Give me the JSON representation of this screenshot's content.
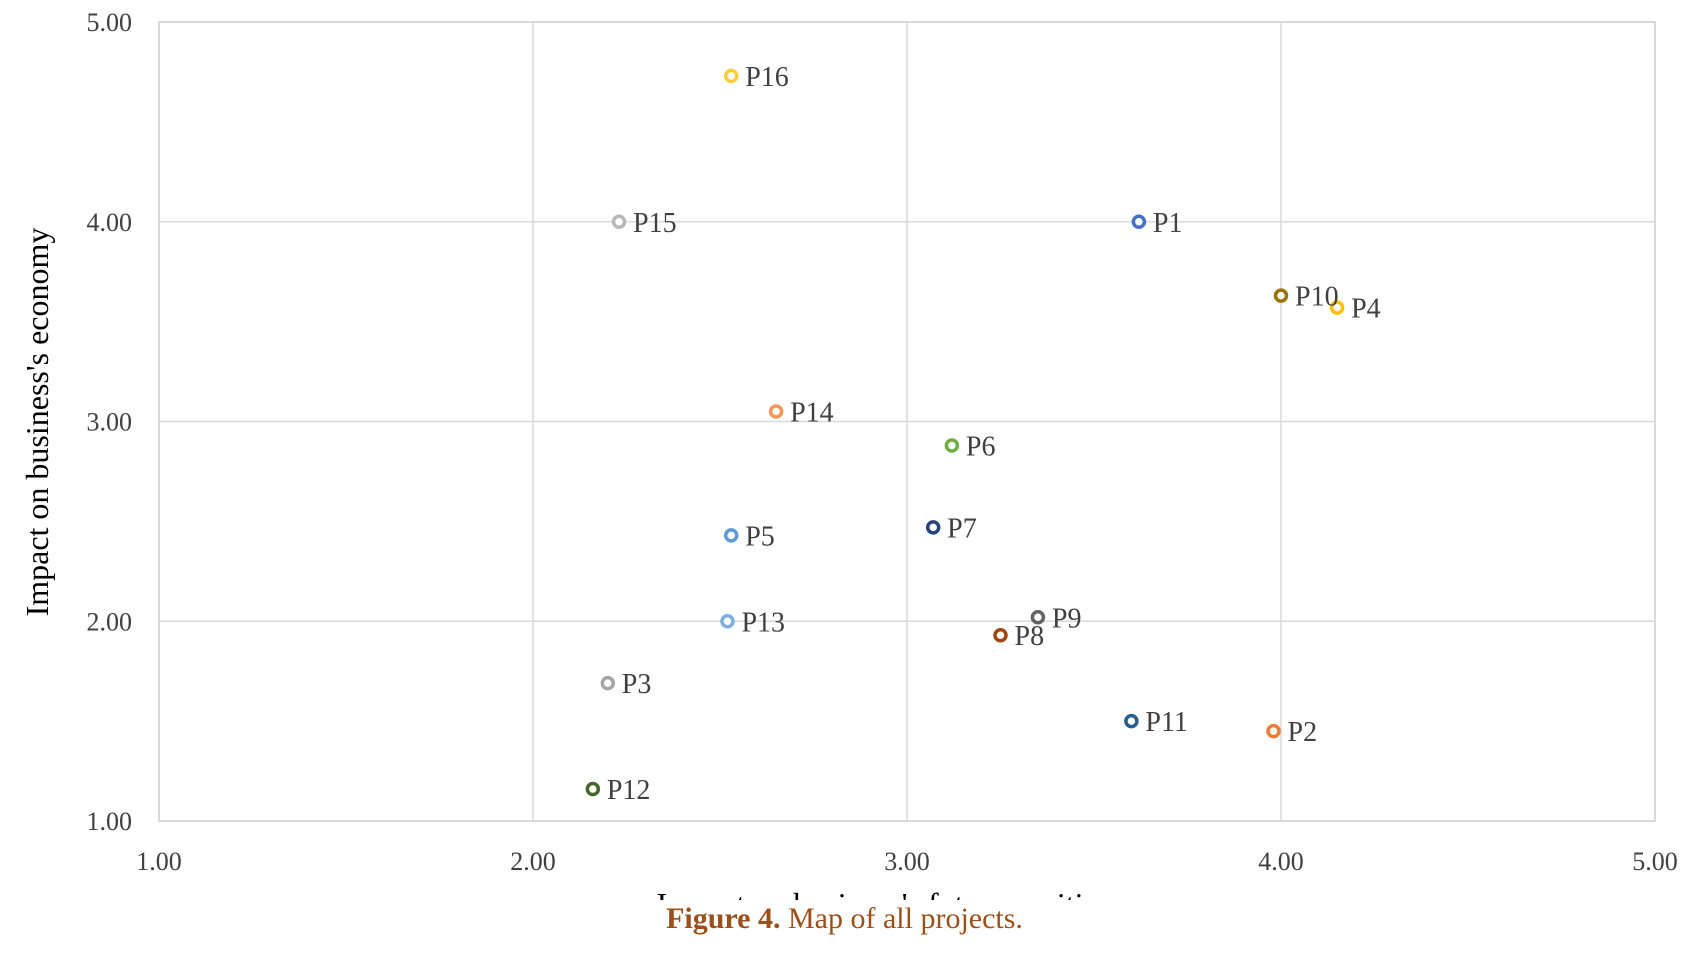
{
  "chart_data": {
    "type": "scatter",
    "xlabel": "Impact on business's future position",
    "ylabel": "Impact on business's economy",
    "xlim": [
      1.0,
      5.0
    ],
    "ylim": [
      1.0,
      5.0
    ],
    "x_ticks": [
      "1.00",
      "2.00",
      "3.00",
      "4.00",
      "5.00"
    ],
    "y_ticks": [
      "1.00",
      "2.00",
      "3.00",
      "4.00",
      "5.00"
    ],
    "grid": true,
    "points": [
      {
        "label": "P1",
        "x": 3.62,
        "y": 4.0,
        "color": "#4472c4"
      },
      {
        "label": "P2",
        "x": 3.98,
        "y": 1.45,
        "color": "#ed7d31"
      },
      {
        "label": "P3",
        "x": 2.2,
        "y": 1.69,
        "color": "#a5a5a5"
      },
      {
        "label": "P4",
        "x": 4.15,
        "y": 3.57,
        "color": "#ffc000"
      },
      {
        "label": "P5",
        "x": 2.53,
        "y": 2.43,
        "color": "#5b9bd5"
      },
      {
        "label": "P6",
        "x": 3.12,
        "y": 2.88,
        "color": "#70ad47"
      },
      {
        "label": "P7",
        "x": 3.07,
        "y": 2.47,
        "color": "#264478"
      },
      {
        "label": "P8",
        "x": 3.25,
        "y": 1.93,
        "color": "#9e480e"
      },
      {
        "label": "P9",
        "x": 3.35,
        "y": 2.02,
        "color": "#636363"
      },
      {
        "label": "P10",
        "x": 4.0,
        "y": 3.63,
        "color": "#997300"
      },
      {
        "label": "P11",
        "x": 3.6,
        "y": 1.5,
        "color": "#255e91"
      },
      {
        "label": "P12",
        "x": 2.16,
        "y": 1.16,
        "color": "#43682b"
      },
      {
        "label": "P13",
        "x": 2.52,
        "y": 2.0,
        "color": "#7cafdd"
      },
      {
        "label": "P14",
        "x": 2.65,
        "y": 3.05,
        "color": "#f1975a"
      },
      {
        "label": "P15",
        "x": 2.23,
        "y": 4.0,
        "color": "#b7b7b7"
      },
      {
        "label": "P16",
        "x": 2.53,
        "y": 4.73,
        "color": "#ffcd33"
      }
    ]
  },
  "caption": {
    "number": "Figure 4.",
    "text": " Map of all projects."
  }
}
